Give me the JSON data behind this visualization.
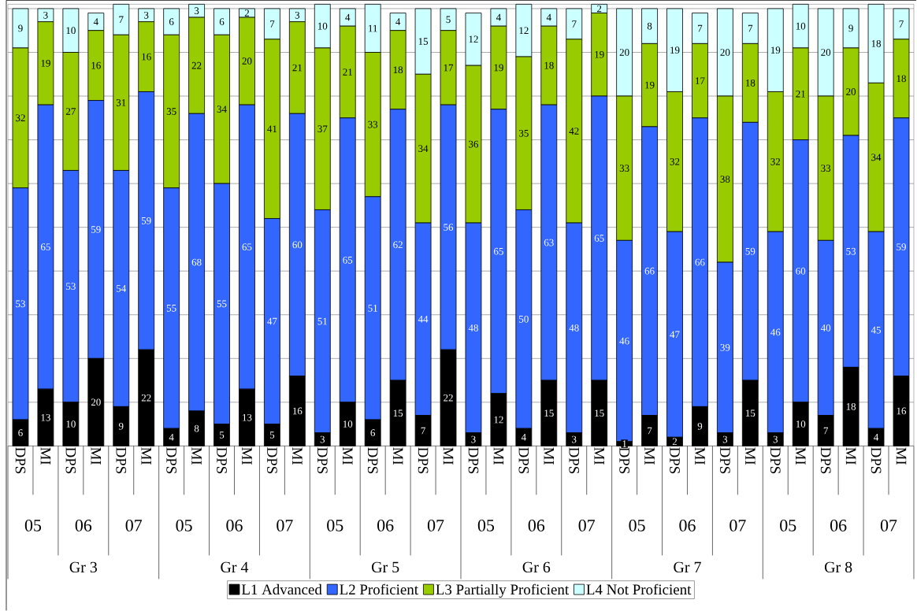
{
  "chart_data": {
    "type": "bar",
    "stacked": true,
    "categories": [
      "DPS",
      "MI",
      "DPS",
      "MI",
      "DPS",
      "MI",
      "DPS",
      "MI",
      "DPS",
      "MI",
      "DPS",
      "MI",
      "DPS",
      "MI",
      "DPS",
      "MI",
      "DPS",
      "MI",
      "DPS",
      "MI",
      "DPS",
      "MI",
      "DPS",
      "MI",
      "DPS",
      "MI",
      "DPS",
      "MI",
      "DPS",
      "MI",
      "DPS",
      "MI",
      "DPS",
      "MI",
      "DPS",
      "MI"
    ],
    "series": [
      {
        "name": "L1 Advanced",
        "color": "#000000",
        "values": [
          6,
          13,
          10,
          20,
          9,
          22,
          4,
          8,
          5,
          13,
          5,
          16,
          3,
          10,
          6,
          15,
          7,
          22,
          3,
          12,
          4,
          15,
          3,
          15,
          1,
          7,
          2,
          9,
          3,
          15,
          3,
          10,
          7,
          18,
          4,
          16
        ]
      },
      {
        "name": "L2 Proficient",
        "color": "#3366ff",
        "values": [
          53,
          65,
          53,
          59,
          54,
          59,
          55,
          68,
          55,
          65,
          47,
          60,
          51,
          65,
          51,
          62,
          44,
          56,
          48,
          65,
          50,
          63,
          48,
          65,
          46,
          66,
          47,
          66,
          39,
          59,
          46,
          60,
          40,
          53,
          45,
          59
        ]
      },
      {
        "name": "L3 Partially Proficient",
        "color": "#99cc00",
        "values": [
          32,
          19,
          27,
          16,
          31,
          16,
          35,
          22,
          34,
          20,
          41,
          21,
          37,
          21,
          33,
          18,
          34,
          17,
          36,
          19,
          35,
          18,
          42,
          19,
          33,
          19,
          32,
          17,
          38,
          18,
          32,
          21,
          33,
          20,
          34,
          18
        ]
      },
      {
        "name": "L4 Not Proficient",
        "color": "#ccffff",
        "values": [
          9,
          3,
          10,
          4,
          7,
          3,
          6,
          3,
          6,
          2,
          7,
          3,
          10,
          4,
          11,
          4,
          15,
          5,
          12,
          4,
          12,
          4,
          7,
          2,
          20,
          8,
          19,
          7,
          20,
          7,
          19,
          10,
          20,
          9,
          18,
          7
        ]
      }
    ],
    "data_labels": true,
    "ylim": [
      0,
      101
    ],
    "yticks": [
      {
        "value": 0,
        "label": null
      },
      {
        "value": 10,
        "label": null
      },
      {
        "value": 20,
        "label": null
      },
      {
        "value": 30,
        "label": null
      },
      {
        "value": 40,
        "label": null
      },
      {
        "value": 50,
        "label": null
      },
      {
        "value": 60,
        "label": null
      },
      {
        "value": 70,
        "label": null
      },
      {
        "value": 80,
        "label": null
      },
      {
        "value": 90,
        "label": null
      },
      {
        "value": 100,
        "label": null
      }
    ],
    "tick_labels": "x",
    "grid": "y",
    "legend": "bottom",
    "annotations": [
      "05",
      "06",
      "07",
      "05",
      "06",
      "07",
      "05",
      "06",
      "07",
      "05",
      "06",
      "07",
      "05",
      "06",
      "07",
      "05",
      "06",
      "07",
      "Gr 3",
      "Gr 4",
      "Gr 5",
      "Gr 6",
      "Gr 7",
      "Gr 8"
    ]
  }
}
